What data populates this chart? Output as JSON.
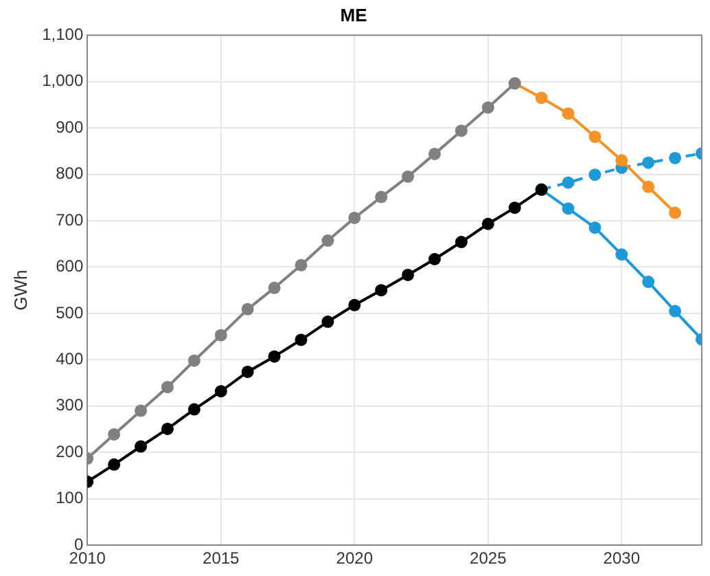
{
  "chart_data": {
    "type": "line",
    "title": "ME",
    "ylabel": "GWh",
    "xlim": [
      2010,
      2033
    ],
    "xticks": [
      2010,
      2015,
      2020,
      2025,
      2030
    ],
    "ylim": [
      0,
      1100
    ],
    "yticks": [
      0,
      100,
      200,
      300,
      400,
      500,
      600,
      700,
      800,
      900,
      {
        "value": 1000,
        "label": "1,000"
      },
      {
        "value": 1100,
        "label": "1,100"
      }
    ],
    "grid": true,
    "legend": false,
    "marker": "circle",
    "series": [
      {
        "color": "#808080",
        "x": [
          2010,
          2011,
          2012,
          2013,
          2014,
          2015,
          2016,
          2017,
          2018,
          2019,
          2020,
          2021,
          2022,
          2023,
          2024,
          2025,
          2026
        ],
        "values": [
          187,
          239,
          290,
          341,
          398,
          453,
          509,
          555,
          604,
          657,
          706,
          751,
          795,
          844,
          894,
          944,
          996
        ]
      },
      {
        "color": "#f39226",
        "x": [
          2026,
          2027,
          2028,
          2029,
          2030,
          2031,
          2032
        ],
        "values": [
          996,
          965,
          931,
          881,
          830,
          773,
          717
        ]
      },
      {
        "color": "#000000",
        "x": [
          2010,
          2011,
          2012,
          2013,
          2014,
          2015,
          2016,
          2017,
          2018,
          2019,
          2020,
          2021,
          2022,
          2023,
          2024,
          2025,
          2026,
          2027
        ],
        "values": [
          137,
          174,
          213,
          251,
          293,
          332,
          374,
          407,
          443,
          482,
          518,
          550,
          583,
          617,
          654,
          693,
          728,
          767
        ]
      },
      {
        "color": "#1f9ad6",
        "x": [
          2027,
          2028,
          2029,
          2030,
          2031,
          2032,
          2033
        ],
        "values": [
          767,
          726,
          685,
          627,
          568,
          505,
          444
        ]
      },
      {
        "color": "#1f9ad6",
        "line_style": "dashed",
        "x": [
          2027,
          2028,
          2029,
          2030,
          2031,
          2032,
          2033
        ],
        "values": [
          767,
          782,
          799,
          814,
          825,
          835,
          845
        ]
      }
    ]
  }
}
